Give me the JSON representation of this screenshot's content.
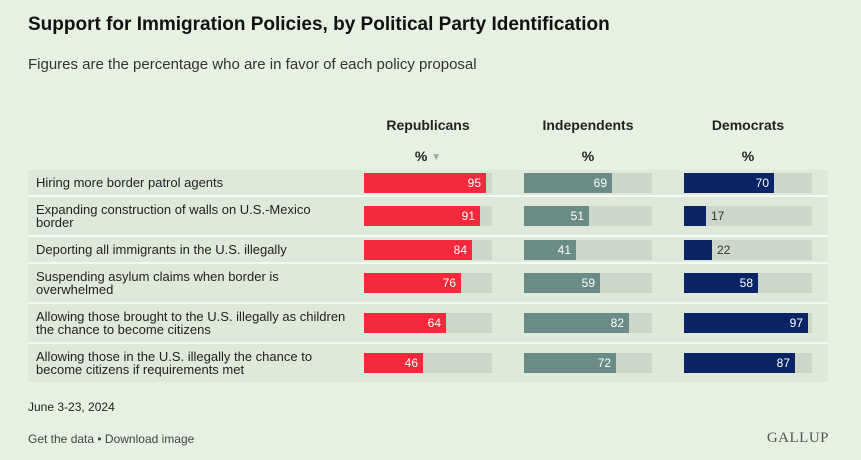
{
  "header": {
    "title": "Support for Immigration Policies, by Political Party Identification",
    "subtitle": "Figures are the percentage who are in favor of each policy proposal"
  },
  "columns": [
    {
      "name": "Republicans",
      "unit": "%",
      "sorted": true
    },
    {
      "name": "Independents",
      "unit": "%",
      "sorted": false
    },
    {
      "name": "Democrats",
      "unit": "%",
      "sorted": false
    }
  ],
  "colors": {
    "Republicans": "#f5293c",
    "Independents": "#6a8b86",
    "Democrats": "#0a2465",
    "track": "#cdd7c9",
    "background": "#e6f1e1"
  },
  "chart_data": {
    "type": "bar",
    "title": "Support for Immigration Policies, by Political Party Identification",
    "subtitle": "Figures are the percentage who are in favor of each policy proposal",
    "categories": [
      "Hiring more border patrol agents",
      "Expanding construction of walls on U.S.-Mexico border",
      "Deporting all immigrants in the U.S. illegally",
      "Suspending asylum claims when border is overwhelmed",
      "Allowing those brought to the U.S. illegally as children the chance to become citizens",
      "Allowing those in the U.S. illegally the chance to become citizens if requirements met"
    ],
    "series": [
      {
        "name": "Republicans",
        "values": [
          95,
          91,
          84,
          76,
          64,
          46
        ]
      },
      {
        "name": "Independents",
        "values": [
          69,
          51,
          41,
          59,
          82,
          72
        ]
      },
      {
        "name": "Democrats",
        "values": [
          70,
          17,
          22,
          58,
          97,
          87
        ]
      }
    ],
    "xlim": [
      0,
      100
    ]
  },
  "footer": {
    "date": "June 3-23, 2024",
    "get_data": "Get the data",
    "separator": " • ",
    "download": "Download image",
    "logo": "GALLUP"
  }
}
